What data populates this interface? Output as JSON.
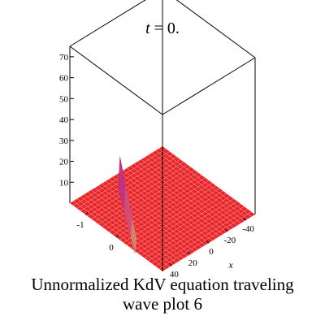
{
  "chart_data": {
    "type": "surface3d",
    "title_var": "t",
    "title_eq": " = 0.",
    "caption_line1": "Unnormalized KdV equation  traveling",
    "caption_line2": "wave plot 6",
    "axes": {
      "x": {
        "label": "x",
        "ticks": [
          -40,
          -20,
          0,
          20,
          40
        ],
        "range": [
          -50,
          50
        ]
      },
      "y": {
        "ticks": [
          -1,
          0
        ],
        "range": [
          -1.5,
          1.5
        ]
      },
      "z": {
        "ticks": [
          10,
          20,
          30,
          40,
          50,
          60,
          70
        ],
        "range": [
          0,
          75
        ]
      }
    },
    "surface": {
      "baseline_z": 0,
      "wave_peak_z": 45,
      "wave_center_x": 0,
      "color": "#e8262a",
      "mesh_color": "#ffb0b0",
      "crest_colors": [
        "#d838c8",
        "#ff77aa",
        "#ffe88a"
      ]
    },
    "box_color": "#000000",
    "grid": false
  }
}
